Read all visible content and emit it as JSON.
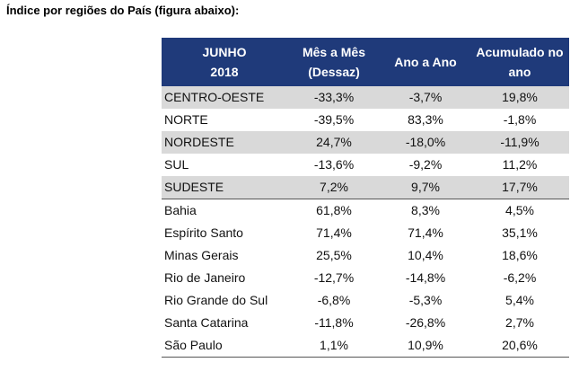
{
  "caption": "Índice por regiões do País (figura abaixo):",
  "table": {
    "header": {
      "col1": [
        "JUNHO",
        "2018"
      ],
      "col2": [
        "Mês a Mês",
        "(Dessaz)"
      ],
      "col3": [
        "Ano a Ano"
      ],
      "col4": [
        "Acumulado no",
        "ano"
      ]
    },
    "rows": [
      {
        "name": "CENTRO-OESTE",
        "mom": "-33,3%",
        "yoy": "-3,7%",
        "ytd": "19,8%"
      },
      {
        "name": "NORTE",
        "mom": "-39,5%",
        "yoy": "83,3%",
        "ytd": "-1,8%"
      },
      {
        "name": "NORDESTE",
        "mom": "24,7%",
        "yoy": "-18,0%",
        "ytd": "-11,9%"
      },
      {
        "name": "SUL",
        "mom": "-13,6%",
        "yoy": "-9,2%",
        "ytd": "11,2%"
      },
      {
        "name": "SUDESTE",
        "mom": "7,2%",
        "yoy": "9,7%",
        "ytd": "17,7%"
      },
      {
        "name": "Bahia",
        "mom": "61,8%",
        "yoy": "8,3%",
        "ytd": "4,5%"
      },
      {
        "name": "Espírito Santo",
        "mom": "71,4%",
        "yoy": "71,4%",
        "ytd": "35,1%"
      },
      {
        "name": "Minas Gerais",
        "mom": "25,5%",
        "yoy": "10,4%",
        "ytd": "18,6%"
      },
      {
        "name": "Rio de Janeiro",
        "mom": "-12,7%",
        "yoy": "-14,8%",
        "ytd": "-6,2%"
      },
      {
        "name": "Rio Grande do Sul",
        "mom": "-6,8%",
        "yoy": "-5,3%",
        "ytd": "5,4%"
      },
      {
        "name": "Santa Catarina",
        "mom": "-11,8%",
        "yoy": "-26,8%",
        "ytd": "2,7%"
      },
      {
        "name": "São Paulo",
        "mom": "1,1%",
        "yoy": "10,9%",
        "ytd": "20,6%"
      }
    ]
  },
  "colors": {
    "header_bg": "#1f3a7a",
    "header_text": "#ffffff",
    "shaded_row": "#d9d9d9"
  }
}
